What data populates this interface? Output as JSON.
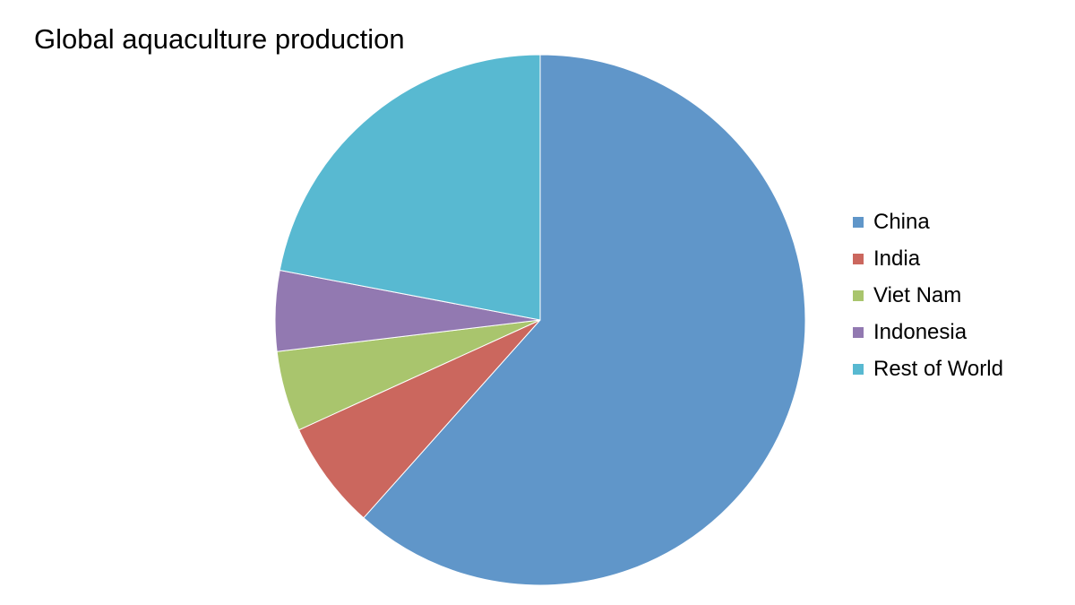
{
  "chart_data": {
    "type": "pie",
    "title": "Global aquaculture production",
    "categories": [
      "China",
      "India",
      "Viet Nam",
      "Indonesia",
      "Rest of World"
    ],
    "values": [
      61.6,
      6.6,
      4.9,
      4.9,
      22.0
    ],
    "unit": "share of total",
    "start_angle": "12 o'clock",
    "direction": "clockwise",
    "legend": "right",
    "colors": [
      "#6096C9",
      "#CB675E",
      "#A9C56D",
      "#9279B1",
      "#58B9D1"
    ],
    "slice_border_color": "#FFFFFF"
  }
}
